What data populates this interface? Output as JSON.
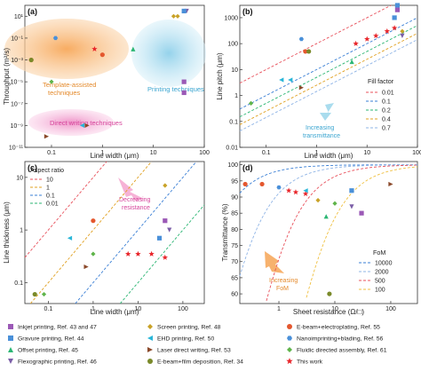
{
  "chart_data": [
    {
      "panel": "(a)",
      "type": "scatter",
      "xlabel": "Line width (μm)",
      "ylabel": "Throughput (m²/s)",
      "xscale": "log",
      "yscale": "log",
      "xlim": [
        0.03,
        100
      ],
      "ylim": [
        1e-11,
        100
      ],
      "xticks": [
        "0.1",
        "1",
        "10",
        "100"
      ],
      "yticks": [
        "10¹",
        "10⁻¹",
        "10⁻³",
        "10⁻⁵",
        "10⁻⁷",
        "10⁻⁹",
        "10⁻¹¹"
      ],
      "regions": [
        {
          "label": "Template-assisted techniques",
          "color": "#f7b26e"
        },
        {
          "label": "Printing techniques",
          "color": "#a9dcee"
        },
        {
          "label": "Direct writing techniques",
          "color": "#f0a3cf"
        }
      ],
      "points": [
        {
          "series": "E-beam+electroplating",
          "x": 0.04,
          "y": 0.001
        },
        {
          "series": "E-beam+electroplating",
          "x": 1.0,
          "y": 0.003
        },
        {
          "series": "Nanoimprinting+blading",
          "x": 0.12,
          "y": 0.1
        },
        {
          "series": "Fluidic directed assembly",
          "x": 0.1,
          "y": 1e-05
        },
        {
          "series": "E-beam+film deposition",
          "x": 0.04,
          "y": 0.001
        },
        {
          "series": "This work",
          "x": 0.7,
          "y": 0.01
        },
        {
          "series": "Offset printing",
          "x": 4.0,
          "y": 0.01
        },
        {
          "series": "Screen printing",
          "x": 25,
          "y": 10
        },
        {
          "series": "Screen printing",
          "x": 30,
          "y": 10
        },
        {
          "series": "Flexographic printing",
          "x": 45,
          "y": 30
        },
        {
          "series": "Gravure printing",
          "x": 40,
          "y": 30
        },
        {
          "series": "Inkjet printing",
          "x": 40,
          "y": 1e-05
        },
        {
          "series": "Inkjet printing",
          "x": 40,
          "y": 1e-06
        },
        {
          "series": "EHD printing",
          "x": 0.4,
          "y": 1e-09
        },
        {
          "series": "Laser direct writing",
          "x": 0.5,
          "y": 1e-09
        },
        {
          "series": "Laser direct writing",
          "x": 0.08,
          "y": 1e-10
        }
      ]
    },
    {
      "panel": "(b)",
      "type": "scatter",
      "xlabel": "Line width (μm)",
      "ylabel": "Line pitch (μm)",
      "xscale": "log",
      "yscale": "log",
      "xlim": [
        0.03,
        100
      ],
      "ylim": [
        0.01,
        3000
      ],
      "xticks": [
        "0.1",
        "1",
        "10",
        "100"
      ],
      "yticks": [
        "1000",
        "100",
        "10",
        "1",
        "0.1",
        "0.01"
      ],
      "legend_title": "Fill factor",
      "fill_factors": [
        0.01,
        0.1,
        0.2,
        0.4,
        0.7
      ],
      "fill_factor_labels": [
        "0.01",
        "0.1",
        "0.2",
        "0.4",
        "0.7"
      ],
      "fill_factor_colors": [
        "#e8505b",
        "#3a7fd5",
        "#2bb673",
        "#e0a020",
        "#8fb4e6"
      ],
      "annotation": "Increasing transmittance",
      "points": [
        {
          "series": "This work",
          "x": 6,
          "y": 100
        },
        {
          "series": "This work",
          "x": 10,
          "y": 150
        },
        {
          "series": "This work",
          "x": 15,
          "y": 200
        },
        {
          "series": "This work",
          "x": 25,
          "y": 300
        },
        {
          "series": "This work",
          "x": 35,
          "y": 400
        },
        {
          "series": "Gravure printing",
          "x": 40,
          "y": 3000
        },
        {
          "series": "Gravure printing",
          "x": 35,
          "y": 1000
        },
        {
          "series": "Inkjet printing",
          "x": 40,
          "y": 2000
        },
        {
          "series": "Flexographic printing",
          "x": 50,
          "y": 200
        },
        {
          "series": "Screen printing",
          "x": 50,
          "y": 300
        },
        {
          "series": "Offset printing",
          "x": 5,
          "y": 20
        },
        {
          "series": "EHD printing",
          "x": 0.2,
          "y": 4
        },
        {
          "series": "EHD printing",
          "x": 0.3,
          "y": 4
        },
        {
          "series": "Laser direct writing",
          "x": 0.5,
          "y": 2
        },
        {
          "series": "E-beam+electroplating",
          "x": 0.6,
          "y": 50
        },
        {
          "series": "E-beam+film deposition",
          "x": 0.7,
          "y": 50
        },
        {
          "series": "Nanoimprinting+blading",
          "x": 0.5,
          "y": 150
        },
        {
          "series": "Fluidic directed assembly",
          "x": 0.05,
          "y": 0.5
        }
      ]
    },
    {
      "panel": "(c)",
      "type": "scatter",
      "xlabel": "Line width (μm)",
      "ylabel": "Line thickness (μm)",
      "xscale": "log",
      "yscale": "log",
      "xlim": [
        0.03,
        300
      ],
      "ylim": [
        0.04,
        20
      ],
      "xticks": [
        "0.1",
        "1",
        "10",
        "100"
      ],
      "yticks": [
        "10",
        "1",
        "0.1"
      ],
      "legend_title": "Aspect ratio",
      "aspect_ratios": [
        10,
        1,
        0.1,
        0.01
      ],
      "aspect_ratio_labels": [
        "10",
        "1",
        "0.1",
        "0.01"
      ],
      "aspect_ratio_colors": [
        "#e8505b",
        "#e0a020",
        "#3a7fd5",
        "#2bb673"
      ],
      "annotation": "Decreasing resistance",
      "points": [
        {
          "series": "This work",
          "x": 6,
          "y": 0.35
        },
        {
          "series": "This work",
          "x": 10,
          "y": 0.35
        },
        {
          "series": "This work",
          "x": 20,
          "y": 0.35
        },
        {
          "series": "This work",
          "x": 40,
          "y": 0.3
        },
        {
          "series": "E-beam+film deposition",
          "x": 0.05,
          "y": 0.06
        },
        {
          "series": "Fluidic directed assembly",
          "x": 0.08,
          "y": 0.06
        },
        {
          "series": "Fluidic directed assembly",
          "x": 1.0,
          "y": 0.35
        },
        {
          "series": "EHD printing",
          "x": 0.3,
          "y": 0.7
        },
        {
          "series": "Laser direct writing",
          "x": 0.7,
          "y": 0.2
        },
        {
          "series": "E-beam+electroplating",
          "x": 1.0,
          "y": 1.5
        },
        {
          "series": "Screen printing",
          "x": 40,
          "y": 7
        },
        {
          "series": "Flexographic printing",
          "x": 50,
          "y": 1.0
        },
        {
          "series": "Gravure printing",
          "x": 30,
          "y": 0.7
        },
        {
          "series": "Inkjet printing",
          "x": 40,
          "y": 1.5
        }
      ]
    },
    {
      "panel": "(d)",
      "type": "scatter",
      "xlabel": "Sheet resistance (Ω/□)",
      "ylabel": "Transmittance (%)",
      "xscale": "log",
      "yscale": "linear",
      "xlim": [
        0.2,
        300
      ],
      "ylim": [
        57,
        101
      ],
      "xticks": [
        "1",
        "10",
        "100"
      ],
      "yticks": [
        "100",
        "95",
        "90",
        "85",
        "80",
        "75",
        "70",
        "65",
        "60"
      ],
      "legend_title": "FoM",
      "fom_values": [
        10000,
        2000,
        500,
        100
      ],
      "fom_labels": [
        "10000",
        "2000",
        "500",
        "100"
      ],
      "fom_colors": [
        "#3a7fd5",
        "#8fb4e6",
        "#e8505b",
        "#f0c040"
      ],
      "annotation": "Increasing FoM",
      "points": [
        {
          "series": "E-beam+electroplating",
          "x": 0.25,
          "y": 94
        },
        {
          "series": "E-beam+electroplating",
          "x": 0.5,
          "y": 94
        },
        {
          "series": "This work",
          "x": 1.5,
          "y": 92
        },
        {
          "series": "This work",
          "x": 2,
          "y": 91.5
        },
        {
          "series": "This work",
          "x": 3,
          "y": 91
        },
        {
          "series": "Nanoimprinting+blading",
          "x": 1,
          "y": 93
        },
        {
          "series": "EHD printing",
          "x": 3,
          "y": 92
        },
        {
          "series": "Screen printing",
          "x": 5,
          "y": 89
        },
        {
          "series": "Offset printing",
          "x": 7,
          "y": 84
        },
        {
          "series": "Fluidic directed assembly",
          "x": 10,
          "y": 88
        },
        {
          "series": "Flexographic printing",
          "x": 20,
          "y": 87
        },
        {
          "series": "Gravure printing",
          "x": 20,
          "y": 92
        },
        {
          "series": "Inkjet printing",
          "x": 30,
          "y": 85
        },
        {
          "series": "Laser direct writing",
          "x": 100,
          "y": 94
        },
        {
          "series": "E-beam+film deposition",
          "x": 8,
          "y": 60
        }
      ]
    }
  ],
  "legend": [
    {
      "label": "Inkjet printing, Ref. 43 and 47",
      "color": "#9b59b6",
      "shape": "square"
    },
    {
      "label": "Gravure printing, Ref. 44",
      "color": "#4a90d9",
      "shape": "square"
    },
    {
      "label": "Offset printing, Ref. 45",
      "color": "#2bb673",
      "shape": "triangle"
    },
    {
      "label": "Flexographic printing, Ref. 46",
      "color": "#7b5ea7",
      "shape": "triangle-down"
    },
    {
      "label": "Screen printing, Ref. 48",
      "color": "#c9a227",
      "shape": "diamond"
    },
    {
      "label": "EHD printing, Ref. 50",
      "color": "#29b6d8",
      "shape": "triangle-left"
    },
    {
      "label": "Laser direct writing, Ref. 53",
      "color": "#8b4a2b",
      "shape": "triangle-right"
    },
    {
      "label": "E-beam+film deposition, Ref. 34",
      "color": "#7a8a2a",
      "shape": "circle"
    },
    {
      "label": "E-beam+electroplating, Ref. 55",
      "color": "#e4572e",
      "shape": "circle"
    },
    {
      "label": "Nanoimprinting+blading, Ref. 56",
      "color": "#4a90d9",
      "shape": "hexagon"
    },
    {
      "label": "Fluidic directed assembly, Ref. 61",
      "color": "#5fb44a",
      "shape": "diamond"
    },
    {
      "label": "This work",
      "color": "#e8262b",
      "shape": "star"
    }
  ]
}
